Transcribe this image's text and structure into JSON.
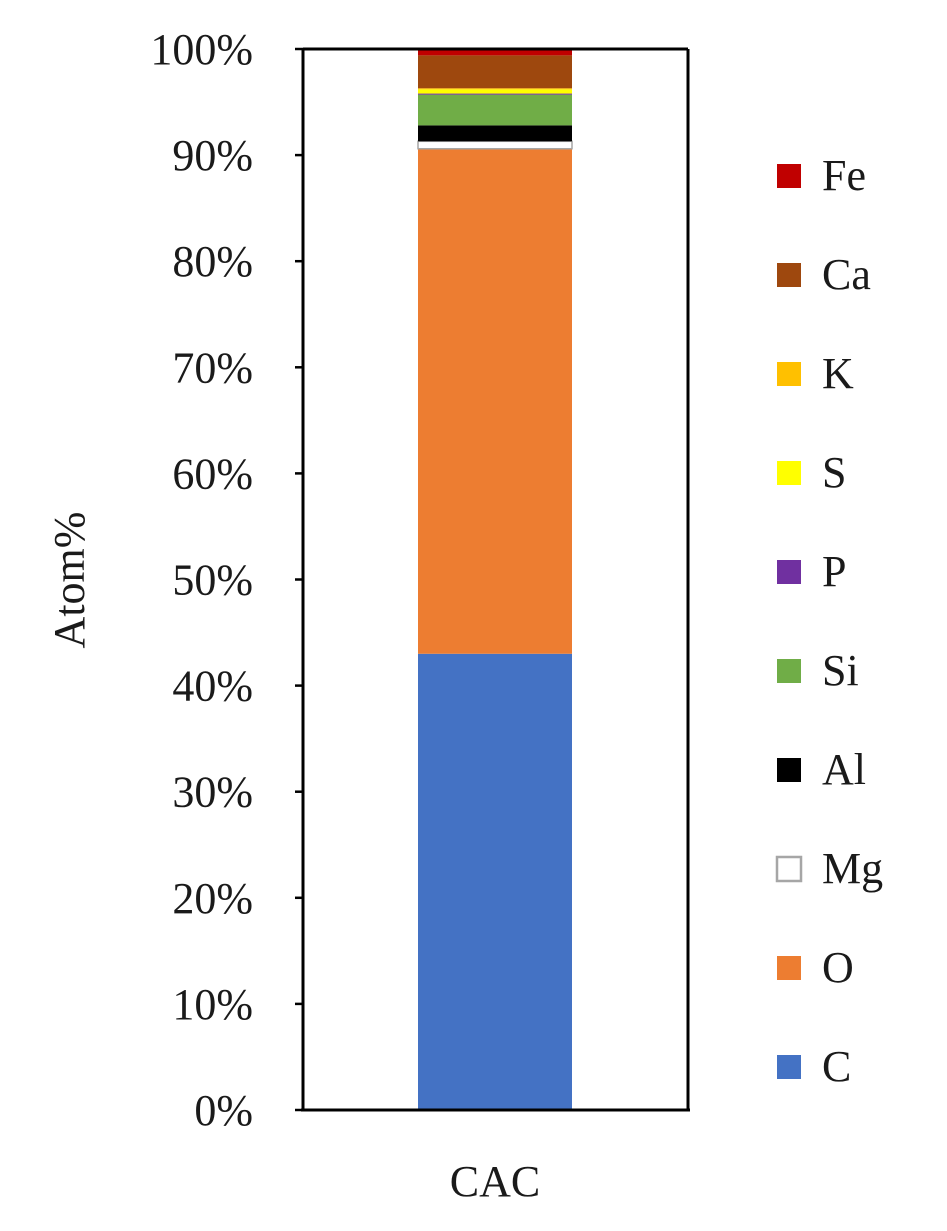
{
  "chart_data": {
    "type": "bar",
    "stacked": true,
    "percent": true,
    "categories": [
      "CAC"
    ],
    "ylabel": "Atom%",
    "xlabel": "",
    "ylim": [
      0,
      100
    ],
    "yticks": [
      "0%",
      "10%",
      "20%",
      "30%",
      "40%",
      "50%",
      "60%",
      "70%",
      "80%",
      "90%",
      "100%"
    ],
    "grid": false,
    "legend_position": "right",
    "series": [
      {
        "name": "C",
        "color": "#4472C4",
        "values": [
          43.0
        ]
      },
      {
        "name": "O",
        "color": "#ED7D31",
        "values": [
          47.6
        ]
      },
      {
        "name": "Mg",
        "color": "#FFFFFF",
        "values": [
          0.7
        ]
      },
      {
        "name": "Al",
        "color": "#000000",
        "values": [
          1.5
        ]
      },
      {
        "name": "Si",
        "color": "#70AD47",
        "values": [
          2.9
        ]
      },
      {
        "name": "P",
        "color": "#7030A0",
        "values": [
          0.1
        ]
      },
      {
        "name": "S",
        "color": "#FFFF00",
        "values": [
          0.4
        ]
      },
      {
        "name": "K",
        "color": "#FFC000",
        "values": [
          0.1
        ]
      },
      {
        "name": "Ca",
        "color": "#9E480E",
        "values": [
          3.1
        ]
      },
      {
        "name": "Fe",
        "color": "#C00000",
        "values": [
          0.6
        ]
      }
    ]
  }
}
